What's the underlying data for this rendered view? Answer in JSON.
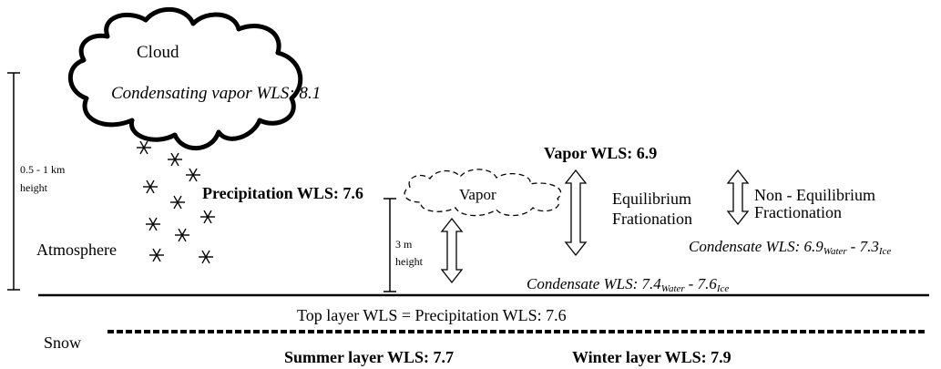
{
  "cloud": {
    "label": "Cloud",
    "vapor_label": "Condensating vapor WLS: 8.1"
  },
  "height_scale": {
    "lines": [
      "0.5 - 1 km",
      "height"
    ]
  },
  "atmosphere": "Atmosphere",
  "precipitation": "Precipitation WLS: 7.6",
  "vapor": "Vapor",
  "near_surface_scale": {
    "lines": [
      "3 m",
      "height"
    ]
  },
  "vapor_wls": "Vapor WLS: 6.9",
  "equilibrium": {
    "lines": [
      "Equilibrium",
      "Frationation"
    ]
  },
  "non_equilibrium": {
    "lines": [
      "Non - Equilibrium",
      "Fractionation"
    ]
  },
  "condensate_upper": {
    "main": "Condensate WLS: 6.9",
    "sub1": "Water",
    "mid": "- 7.3",
    "sub2": "Ice"
  },
  "condensate_lower": {
    "main": "Condensate WLS: 7.4",
    "sub1": "Water",
    "mid": "- 7.6",
    "sub2": "Ice"
  },
  "top_layer": "Top layer WLS = Precipitation WLS: 7.6",
  "snow": "Snow",
  "summer_layer": "Summer layer WLS: 7.7",
  "winter_layer": "Winter layer WLS: 7.9"
}
